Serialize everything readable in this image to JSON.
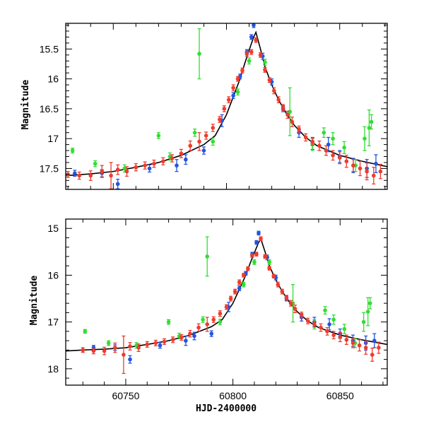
{
  "chart_data": [
    {
      "type": "scatter",
      "panel": "top",
      "ylabel": "Magnitude",
      "xlabel": "",
      "xlim": [
        60729,
        60871
      ],
      "ylim": [
        17.85,
        15.07
      ],
      "y_inverted": true,
      "x_ticks": [
        60750,
        60800,
        60850
      ],
      "x_tick_labels": [],
      "y_ticks": [
        15.5,
        16,
        16.5,
        17,
        17.5
      ],
      "y_tick_labels": [
        "15.5",
        "16",
        "16.5",
        "17",
        "17.5"
      ],
      "model_curve": {
        "x": [
          60729,
          60740,
          60750,
          60760,
          60770,
          60780,
          60790,
          60795,
          60800,
          60803,
          60806,
          60808,
          60810,
          60812,
          60813,
          60815,
          60817,
          60820,
          60823,
          60826,
          60830,
          60835,
          60840,
          60850,
          60860,
          60871
        ],
        "y": [
          17.62,
          17.59,
          17.55,
          17.48,
          17.4,
          17.28,
          17.1,
          16.95,
          16.6,
          16.3,
          16.0,
          15.75,
          15.52,
          15.3,
          15.22,
          15.5,
          15.8,
          16.1,
          16.35,
          16.55,
          16.78,
          16.98,
          17.12,
          17.28,
          17.38,
          17.47
        ]
      },
      "series": [
        {
          "name": "",
          "color": "#2255dd",
          "x": [
            60733,
            60745,
            60752,
            60766,
            60778,
            60782,
            60790,
            60798,
            60803,
            60806,
            60809,
            60811,
            60812,
            60816,
            60820,
            60825,
            60832,
            60838,
            60845,
            60850,
            60856,
            60862,
            60866
          ],
          "y": [
            17.58,
            17.58,
            17.76,
            17.5,
            17.45,
            17.35,
            17.2,
            16.7,
            16.28,
            15.96,
            15.55,
            15.3,
            15.1,
            15.62,
            16.05,
            16.5,
            16.9,
            17.08,
            17.1,
            17.3,
            17.45,
            17.5,
            17.42
          ],
          "err": [
            0.05,
            0.06,
            0.08,
            0.06,
            0.1,
            0.08,
            0.06,
            0.1,
            0.05,
            0.04,
            0.04,
            0.04,
            0.04,
            0.05,
            0.05,
            0.05,
            0.08,
            0.1,
            0.12,
            0.1,
            0.12,
            0.15,
            0.15
          ]
        },
        {
          "name": "",
          "color": "#33dd33",
          "x": [
            60732,
            60742,
            60755,
            60770,
            60775,
            60786,
            60788,
            60794,
            60805,
            60810,
            60817,
            60828,
            60838,
            60843,
            60847,
            60852,
            60857,
            60861,
            60863,
            60864
          ],
          "y": [
            17.2,
            17.42,
            17.5,
            16.95,
            17.3,
            16.9,
            15.58,
            17.05,
            16.22,
            15.7,
            15.72,
            16.55,
            17.1,
            16.9,
            17.0,
            17.15,
            17.45,
            17.0,
            16.82,
            16.72
          ],
          "err": [
            0.04,
            0.05,
            0.06,
            0.05,
            0.06,
            0.06,
            0.42,
            0.06,
            0.05,
            0.05,
            0.05,
            0.4,
            0.1,
            0.08,
            0.1,
            0.1,
            0.1,
            0.2,
            0.3,
            0.12
          ]
        },
        {
          "name": "",
          "color": "#ee3b2e",
          "x": [
            60730,
            60735,
            60740,
            60745,
            60749,
            60752,
            60756,
            60760,
            60764,
            60768,
            60772,
            60776,
            60780,
            60784,
            60788,
            60791,
            60794,
            60797,
            60799,
            60801,
            60803,
            60805,
            60807,
            60809,
            60811,
            60813,
            60815,
            60817,
            60819,
            60821,
            60823,
            60825,
            60827,
            60829,
            60832,
            60835,
            60838,
            60841,
            60844,
            60847,
            60850,
            60853,
            60856,
            60859,
            60862,
            60865,
            60868
          ],
          "y": [
            17.6,
            17.62,
            17.62,
            17.55,
            17.62,
            17.52,
            17.55,
            17.48,
            17.45,
            17.42,
            17.38,
            17.33,
            17.25,
            17.12,
            17.05,
            16.95,
            16.82,
            16.68,
            16.5,
            16.35,
            16.15,
            16.0,
            15.86,
            15.58,
            15.55,
            15.35,
            15.6,
            15.85,
            16.02,
            16.2,
            16.35,
            16.48,
            16.6,
            16.72,
            16.85,
            16.98,
            17.05,
            17.12,
            17.2,
            17.28,
            17.32,
            17.38,
            17.45,
            17.5,
            17.55,
            17.62,
            17.55
          ],
          "err": [
            0.05,
            0.06,
            0.08,
            0.1,
            0.22,
            0.08,
            0.08,
            0.06,
            0.06,
            0.06,
            0.06,
            0.06,
            0.07,
            0.08,
            0.15,
            0.06,
            0.06,
            0.05,
            0.05,
            0.05,
            0.05,
            0.04,
            0.04,
            0.04,
            0.04,
            0.04,
            0.04,
            0.04,
            0.04,
            0.05,
            0.05,
            0.05,
            0.06,
            0.08,
            0.06,
            0.06,
            0.06,
            0.08,
            0.08,
            0.08,
            0.1,
            0.1,
            0.1,
            0.12,
            0.14,
            0.14,
            0.12
          ]
        }
      ]
    },
    {
      "type": "scatter",
      "panel": "bottom",
      "ylabel": "Magnitude",
      "xlabel": "HJD-2400000",
      "xlim": [
        60722,
        60872
      ],
      "ylim": [
        18.35,
        14.8
      ],
      "y_inverted": true,
      "x_ticks": [
        60750,
        60800,
        60850
      ],
      "x_tick_labels": [
        "60750",
        "60800",
        "60850"
      ],
      "y_ticks": [
        15,
        16,
        17,
        18
      ],
      "y_tick_labels": [
        "15",
        "16",
        "17",
        "18"
      ],
      "model_curve": {
        "x": [
          60722,
          60730,
          60740,
          60750,
          60760,
          60770,
          60780,
          60790,
          60795,
          60800,
          60803,
          60806,
          60808,
          60810,
          60812,
          60813,
          60815,
          60817,
          60820,
          60823,
          60826,
          60830,
          60835,
          60840,
          60850,
          60860,
          60872
        ],
        "y": [
          17.62,
          17.6,
          17.58,
          17.55,
          17.48,
          17.4,
          17.28,
          17.1,
          16.95,
          16.6,
          16.3,
          16.0,
          15.75,
          15.52,
          15.3,
          15.22,
          15.5,
          15.8,
          16.1,
          16.35,
          16.55,
          16.78,
          16.98,
          17.12,
          17.28,
          17.38,
          17.48
        ]
      },
      "series": [
        {
          "name": "",
          "color": "#2255dd",
          "x": [
            60735,
            60745,
            60752,
            60766,
            60778,
            60782,
            60790,
            60798,
            60803,
            60806,
            60809,
            60811,
            60812,
            60816,
            60820,
            60825,
            60832,
            60838,
            60845,
            60850,
            60856,
            60862,
            60866
          ],
          "y": [
            17.55,
            17.55,
            17.8,
            17.5,
            17.4,
            17.3,
            17.25,
            16.68,
            16.28,
            15.96,
            15.55,
            15.3,
            15.1,
            15.62,
            16.05,
            16.5,
            16.9,
            17.0,
            17.05,
            17.25,
            17.4,
            17.45,
            17.4
          ],
          "err": [
            0.05,
            0.06,
            0.08,
            0.06,
            0.1,
            0.08,
            0.06,
            0.1,
            0.05,
            0.04,
            0.04,
            0.04,
            0.04,
            0.05,
            0.05,
            0.05,
            0.08,
            0.1,
            0.12,
            0.1,
            0.12,
            0.15,
            0.15
          ]
        },
        {
          "name": "",
          "color": "#33dd33",
          "x": [
            60731,
            60742,
            60755,
            60770,
            60775,
            60786,
            60788,
            60794,
            60805,
            60810,
            60817,
            60828,
            60838,
            60843,
            60847,
            60852,
            60857,
            60861,
            60863,
            60864
          ],
          "y": [
            17.2,
            17.45,
            17.5,
            17.0,
            17.3,
            16.95,
            15.6,
            17.0,
            16.2,
            15.72,
            15.72,
            16.6,
            17.05,
            16.75,
            16.95,
            17.15,
            17.45,
            17.0,
            16.78,
            16.6
          ],
          "err": [
            0.04,
            0.05,
            0.06,
            0.05,
            0.06,
            0.06,
            0.42,
            0.06,
            0.05,
            0.05,
            0.05,
            0.4,
            0.1,
            0.08,
            0.1,
            0.1,
            0.1,
            0.2,
            0.3,
            0.12
          ]
        },
        {
          "name": "",
          "color": "#ee3b2e",
          "x": [
            60730,
            60735,
            60740,
            60745,
            60749,
            60752,
            60756,
            60760,
            60764,
            60768,
            60772,
            60776,
            60780,
            60784,
            60788,
            60791,
            60794,
            60797,
            60799,
            60801,
            60803,
            60805,
            60807,
            60809,
            60811,
            60813,
            60815,
            60817,
            60819,
            60821,
            60823,
            60825,
            60827,
            60829,
            60832,
            60835,
            60838,
            60841,
            60844,
            60847,
            60850,
            60853,
            60856,
            60859,
            60862,
            60865,
            60868
          ],
          "y": [
            17.6,
            17.62,
            17.62,
            17.55,
            17.7,
            17.52,
            17.55,
            17.48,
            17.45,
            17.42,
            17.38,
            17.33,
            17.25,
            17.12,
            17.05,
            16.95,
            16.82,
            16.68,
            16.5,
            16.35,
            16.15,
            16.0,
            15.86,
            15.58,
            15.55,
            15.22,
            15.6,
            15.85,
            16.02,
            16.2,
            16.35,
            16.48,
            16.6,
            16.72,
            16.85,
            16.98,
            17.05,
            17.12,
            17.2,
            17.28,
            17.32,
            17.38,
            17.45,
            17.5,
            17.55,
            17.7,
            17.55
          ],
          "err": [
            0.05,
            0.06,
            0.08,
            0.1,
            0.4,
            0.08,
            0.08,
            0.06,
            0.06,
            0.06,
            0.06,
            0.06,
            0.07,
            0.08,
            0.15,
            0.06,
            0.06,
            0.05,
            0.05,
            0.05,
            0.05,
            0.04,
            0.04,
            0.04,
            0.04,
            0.04,
            0.04,
            0.04,
            0.04,
            0.05,
            0.05,
            0.05,
            0.06,
            0.08,
            0.06,
            0.06,
            0.06,
            0.08,
            0.08,
            0.08,
            0.1,
            0.1,
            0.1,
            0.12,
            0.14,
            0.14,
            0.12
          ]
        }
      ]
    }
  ]
}
